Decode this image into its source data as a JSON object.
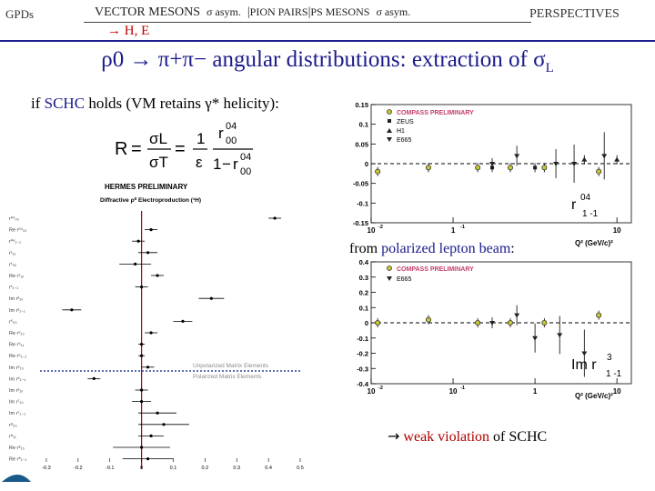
{
  "nav": {
    "gpds": "GPDs",
    "vector_mesons": "VECTOR MESONS",
    "sigma_asym_1": "σ  asym.",
    "sep1": "|",
    "pion_pairs": "PION PAIRS",
    "sep2": "|",
    "ps_mesons": "PS MESONS",
    "sigma_asym_2": "σ  asym.",
    "perspectives": "PERSPECTIVES",
    "sub_item": "→ H, E"
  },
  "title": {
    "main": "ρ0 → π+π− angular distributions: extraction of σ",
    "sub": "L"
  },
  "intro": {
    "pre": "if ",
    "link": "SCHC",
    "post": " holds (VM retains γ* helicity):"
  },
  "formula": {
    "lhs": "R",
    "eq1": "=",
    "sl": "σL",
    "st": "σT",
    "eq2": "=",
    "one": "1",
    "eps": "ε",
    "r1": "r",
    "r1sup": "04",
    "r1sub": "00",
    "one2": "1",
    "minus": "−",
    "r2": "r",
    "r2sup": "04",
    "r2sub": "00"
  },
  "hermes": {
    "title": "HERMES PRELIMINARY",
    "subtitle": "Diffractive ρ⁰ Electroproduction (¹H)",
    "legend_unconstrained": "Unpolarized Matrix Elements",
    "legend_polarized": "Polarized Matrix Elements",
    "row_labels": [
      "r⁰⁴₀₀",
      "Re r⁰⁴₁₀",
      "r⁰⁴₁₋₁",
      "r¹₁₁",
      "r¹₀₀",
      "Re r¹₁₀",
      "r¹₁₋₁",
      "Im r²₁₀",
      "Im r²₁₋₁",
      "r⁵₀₀",
      "Re r⁵₁₀",
      "Re r⁵₁₁",
      "Re r⁵₁₋₁",
      "Im r⁶₁₀",
      "Im r⁶₁₋₁",
      "Im r³₁₀",
      "Im r⁷₁₀",
      "Im r⁷₁₋₁",
      "r⁸₀₀",
      "r⁸₁₁",
      "Re r⁸₁₀",
      "Re r⁸₁₋₁"
    ],
    "x_ticks": [
      "-0.3",
      "-0.2",
      "-0.1",
      "0",
      "0.1",
      "0.2",
      "0.3",
      "0.4",
      "0.5"
    ],
    "chart_data": {
      "type": "scatter",
      "x_range": [
        -0.32,
        0.5
      ],
      "values": [
        0.42,
        0.03,
        -0.01,
        0.02,
        -0.02,
        0.05,
        0.0,
        0.22,
        -0.22,
        0.13,
        0.03,
        0.0,
        0.0,
        0.02,
        -0.15,
        0.0,
        0.0,
        0.05,
        0.07,
        0.03,
        0.0,
        0.02
      ],
      "errors": [
        0.02,
        0.02,
        0.02,
        0.03,
        0.05,
        0.02,
        0.02,
        0.04,
        0.03,
        0.03,
        0.02,
        0.01,
        0.01,
        0.02,
        0.02,
        0.02,
        0.03,
        0.06,
        0.08,
        0.04,
        0.09,
        0.08
      ]
    }
  },
  "top_plot": {
    "legend": [
      "COMPASS PRELIMINARY",
      "ZEUS",
      "H1",
      "E665"
    ],
    "y_ticks": [
      "0.15",
      "0.1",
      "0.05",
      "0",
      "-0.05",
      "-0.1",
      "-0.15"
    ],
    "x_ticks": [
      "10",
      "1",
      "10"
    ],
    "x_tick_exps": [
      "-2",
      "-1",
      ""
    ],
    "x_label": "Q² (GeV/c)²",
    "label_main": "r",
    "label_sup": "04",
    "label_sub": "1 -1",
    "chart_data": {
      "type": "scatter",
      "x_scale": "log",
      "y_range": [
        -0.15,
        0.15
      ],
      "series": [
        {
          "name": "COMPASS PRELIMINARY",
          "x": [
            0.012,
            0.05,
            0.2,
            0.5,
            1.3,
            6
          ],
          "y": [
            -0.02,
            -0.01,
            -0.01,
            -0.01,
            -0.01,
            -0.02
          ]
        },
        {
          "name": "ZEUS",
          "x": [
            0.3,
            1.0
          ],
          "y": [
            -0.01,
            -0.01
          ]
        },
        {
          "name": "H1",
          "x": [
            4,
            10
          ],
          "y": [
            0.01,
            0.01
          ]
        },
        {
          "name": "E665",
          "x": [
            0.3,
            0.6,
            1.8,
            3,
            7
          ],
          "y": [
            0.0,
            0.02,
            0.0,
            0.0,
            0.02
          ]
        }
      ]
    }
  },
  "bottom_plot": {
    "legend": [
      "COMPASS PRELIMINARY",
      "E665"
    ],
    "y_ticks": [
      "0.4",
      "0.3",
      "0.2",
      "0.1",
      "0",
      "-0.1",
      "-0.2",
      "-0.3",
      "-0.4"
    ],
    "x_ticks": [
      "10",
      "10",
      "1",
      "10"
    ],
    "x_tick_exps": [
      "-2",
      "-1",
      "",
      ""
    ],
    "x_label": "Q² (GeV/c)²",
    "label_main": "Im r",
    "label_sup": "3",
    "label_sub": "1 -1",
    "chart_data": {
      "type": "scatter",
      "x_scale": "log",
      "y_range": [
        -0.4,
        0.4
      ],
      "series": [
        {
          "name": "COMPASS PRELIMINARY",
          "x": [
            0.012,
            0.05,
            0.2,
            0.5,
            1.3,
            6
          ],
          "y": [
            0.0,
            0.02,
            0.0,
            0.0,
            0.0,
            0.05
          ]
        },
        {
          "name": "E665",
          "x": [
            0.3,
            0.6,
            1.0,
            2.0,
            4.0
          ],
          "y": [
            0.0,
            0.05,
            -0.1,
            -0.08,
            -0.2
          ]
        }
      ]
    }
  },
  "beam_note": {
    "pre": "from ",
    "link": "polarized lepton beam",
    "post": ":"
  },
  "conclusion": {
    "arrow": "→",
    "link": "weak violation",
    "post": " of SCHC"
  },
  "colors": {
    "title": "#1a1a8c",
    "nav_rule": "#1f1f8f",
    "accent_red": "#b00000",
    "compass": "#b5b52a",
    "legend_text": "#c33f6a"
  }
}
